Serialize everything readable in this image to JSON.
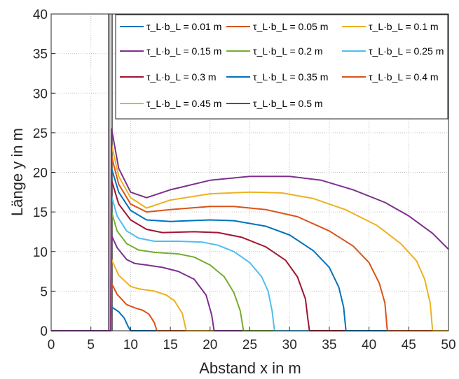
{
  "chart_data": {
    "type": "line",
    "xlabel": "Abstand x in m",
    "ylabel": "Länge y in m",
    "xlim": [
      0,
      50
    ],
    "ylim": [
      0,
      40
    ],
    "xticks": [
      "0",
      "5",
      "10",
      "15",
      "20",
      "25",
      "30",
      "35",
      "40",
      "45",
      "50"
    ],
    "yticks": [
      "0",
      "5",
      "10",
      "15",
      "20",
      "25",
      "30",
      "35",
      "40"
    ],
    "grid": true,
    "legend_position": "top-right",
    "wall": {
      "x_from": 7.2,
      "x_to": 7.7,
      "y_from": 0,
      "y_to": 40
    },
    "series": [
      {
        "name": "τ_L·b_L = 0.01 m",
        "color": "#0072BD",
        "points": [
          [
            0,
            0
          ],
          [
            7.5,
            0
          ],
          [
            7.6,
            3
          ],
          [
            8.5,
            2.4
          ],
          [
            9.2,
            1.6
          ],
          [
            9.7,
            0.5
          ],
          [
            10,
            0
          ],
          [
            50,
            0
          ]
        ]
      },
      {
        "name": "τ_L·b_L = 0.05 m",
        "color": "#D95319",
        "points": [
          [
            0,
            0
          ],
          [
            7.5,
            0
          ],
          [
            7.6,
            6
          ],
          [
            8.3,
            4.6
          ],
          [
            9.5,
            3.3
          ],
          [
            10.5,
            2.9
          ],
          [
            11.5,
            2.6
          ],
          [
            12.3,
            2.1
          ],
          [
            13,
            1
          ],
          [
            13.3,
            0
          ],
          [
            50,
            0
          ]
        ]
      },
      {
        "name": "τ_L·b_L = 0.1 m",
        "color": "#EDB120",
        "points": [
          [
            0,
            0
          ],
          [
            7.5,
            0
          ],
          [
            7.6,
            9
          ],
          [
            8.5,
            7
          ],
          [
            10,
            5.6
          ],
          [
            11,
            5.3
          ],
          [
            13,
            5
          ],
          [
            14.5,
            4.5
          ],
          [
            15.5,
            3.8
          ],
          [
            16.5,
            2.2
          ],
          [
            17,
            0
          ],
          [
            50,
            0
          ]
        ]
      },
      {
        "name": "τ_L·b_L = 0.15 m",
        "color": "#7E2F8E",
        "points": [
          [
            0,
            0
          ],
          [
            7.5,
            0
          ],
          [
            7.6,
            12
          ],
          [
            8.3,
            10.5
          ],
          [
            9.5,
            9
          ],
          [
            10.5,
            8.5
          ],
          [
            12,
            8.3
          ],
          [
            14,
            8
          ],
          [
            16,
            7.5
          ],
          [
            18,
            6.5
          ],
          [
            19.5,
            4.5
          ],
          [
            20.2,
            2
          ],
          [
            20.5,
            0
          ],
          [
            50,
            0
          ]
        ]
      },
      {
        "name": "τ_L·b_L = 0.2 m",
        "color": "#77AC30",
        "points": [
          [
            0,
            0
          ],
          [
            7.5,
            0
          ],
          [
            7.6,
            15
          ],
          [
            8.3,
            12.6
          ],
          [
            9.5,
            11
          ],
          [
            11,
            10.2
          ],
          [
            13,
            9.9
          ],
          [
            16,
            9.7
          ],
          [
            18,
            9.3
          ],
          [
            20,
            8.3
          ],
          [
            21.8,
            6.8
          ],
          [
            23,
            4.8
          ],
          [
            23.8,
            2.5
          ],
          [
            24.2,
            0
          ],
          [
            50,
            0
          ]
        ]
      },
      {
        "name": "τ_L·b_L = 0.25 m",
        "color": "#4DBEEE",
        "points": [
          [
            0,
            0
          ],
          [
            7.5,
            0
          ],
          [
            7.6,
            17
          ],
          [
            8.3,
            14.5
          ],
          [
            9.5,
            12.6
          ],
          [
            11,
            11.7
          ],
          [
            13,
            11.3
          ],
          [
            16,
            11.3
          ],
          [
            19,
            11.2
          ],
          [
            21,
            10.8
          ],
          [
            23,
            10
          ],
          [
            25,
            8.6
          ],
          [
            26.5,
            6.8
          ],
          [
            27.3,
            5
          ],
          [
            27.8,
            2.5
          ],
          [
            28.1,
            0
          ],
          [
            50,
            0
          ]
        ]
      },
      {
        "name": "τ_L·b_L = 0.3 m",
        "color": "#A2142F",
        "points": [
          [
            0,
            0
          ],
          [
            7.5,
            0
          ],
          [
            7.6,
            19
          ],
          [
            8.5,
            16
          ],
          [
            10,
            14
          ],
          [
            12,
            12.8
          ],
          [
            14,
            12.4
          ],
          [
            18,
            12.5
          ],
          [
            21,
            12.4
          ],
          [
            24,
            11.8
          ],
          [
            27,
            10.6
          ],
          [
            29.5,
            8.9
          ],
          [
            31,
            6.8
          ],
          [
            32,
            4
          ],
          [
            32.3,
            1.5
          ],
          [
            32.5,
            0
          ],
          [
            50,
            0
          ]
        ]
      },
      {
        "name": "τ_L·b_L = 0.35 m",
        "color": "#0072BD",
        "points": [
          [
            0,
            0
          ],
          [
            7.5,
            0
          ],
          [
            7.6,
            20.5
          ],
          [
            8.5,
            17.5
          ],
          [
            10,
            15.2
          ],
          [
            12,
            14
          ],
          [
            15,
            13.8
          ],
          [
            20,
            14
          ],
          [
            23,
            13.9
          ],
          [
            27,
            13.2
          ],
          [
            30,
            12.1
          ],
          [
            33,
            10.1
          ],
          [
            35,
            8
          ],
          [
            36.2,
            5.5
          ],
          [
            36.8,
            3
          ],
          [
            37.1,
            0
          ],
          [
            50,
            0
          ]
        ]
      },
      {
        "name": "τ_L·b_L = 0.4 m",
        "color": "#D95319",
        "points": [
          [
            0,
            0
          ],
          [
            7.5,
            0
          ],
          [
            7.6,
            22
          ],
          [
            8.5,
            18.5
          ],
          [
            10,
            16
          ],
          [
            12,
            15
          ],
          [
            15,
            15.3
          ],
          [
            20,
            15.7
          ],
          [
            23,
            15.7
          ],
          [
            27,
            15.3
          ],
          [
            31,
            14.4
          ],
          [
            35,
            12.6
          ],
          [
            38,
            10.7
          ],
          [
            40,
            8.6
          ],
          [
            41.3,
            6
          ],
          [
            42,
            3.5
          ],
          [
            42.3,
            0
          ],
          [
            50,
            0
          ]
        ]
      },
      {
        "name": "τ_L·b_L = 0.45 m",
        "color": "#EDB120",
        "points": [
          [
            0,
            0
          ],
          [
            7.5,
            0
          ],
          [
            7.6,
            23.5
          ],
          [
            8.5,
            19.5
          ],
          [
            10,
            16.8
          ],
          [
            12,
            15.5
          ],
          [
            15,
            16.5
          ],
          [
            20,
            17.3
          ],
          [
            25,
            17.5
          ],
          [
            29,
            17.4
          ],
          [
            33,
            16.7
          ],
          [
            37,
            15.3
          ],
          [
            41,
            13.3
          ],
          [
            44,
            11
          ],
          [
            46,
            8.8
          ],
          [
            47,
            6.5
          ],
          [
            47.7,
            3.5
          ],
          [
            48,
            0
          ],
          [
            50,
            0
          ]
        ]
      },
      {
        "name": "τ_L·b_L = 0.5 m",
        "color": "#7E2F8E",
        "points": [
          [
            0,
            0
          ],
          [
            7.5,
            0
          ],
          [
            7.6,
            25.5
          ],
          [
            8.5,
            20.5
          ],
          [
            10,
            17.5
          ],
          [
            12,
            16.8
          ],
          [
            15,
            17.8
          ],
          [
            20,
            19
          ],
          [
            25,
            19.5
          ],
          [
            30,
            19.5
          ],
          [
            34,
            19
          ],
          [
            38,
            17.8
          ],
          [
            42,
            16.2
          ],
          [
            45,
            14.5
          ],
          [
            48,
            12.3
          ],
          [
            50,
            10.3
          ]
        ]
      }
    ]
  }
}
